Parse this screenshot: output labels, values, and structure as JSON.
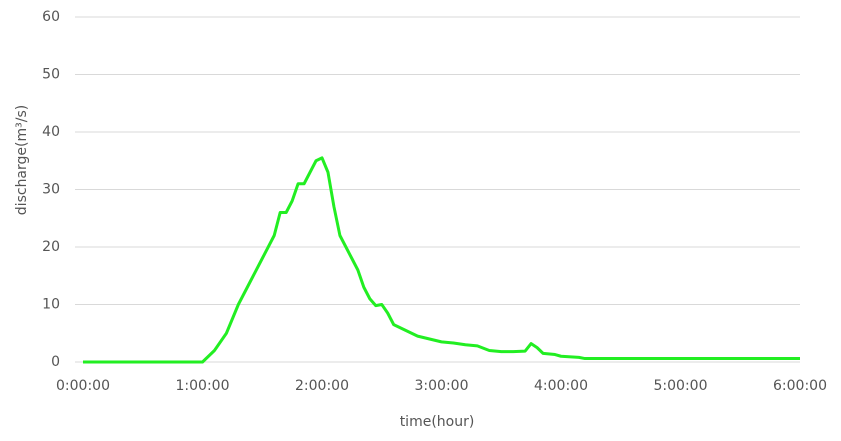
{
  "chart_data": {
    "type": "line",
    "x_label": "time(hour)",
    "y_label": "discharge(m³/s)",
    "xlim": [
      0,
      6
    ],
    "xticks": [
      {
        "value": 0,
        "label": "0:00:00"
      },
      {
        "value": 1,
        "label": "1:00:00"
      },
      {
        "value": 2,
        "label": "2:00:00"
      },
      {
        "value": 3,
        "label": "3:00:00"
      },
      {
        "value": 4,
        "label": "4:00:00"
      },
      {
        "value": 5,
        "label": "5:00:00"
      },
      {
        "value": 6,
        "label": "6:00:00"
      }
    ],
    "ylim": [
      0,
      60
    ],
    "yticks": [
      0,
      10,
      20,
      30,
      40,
      50,
      60
    ],
    "grid": true,
    "color": "#22ee22",
    "x": [
      0,
      1.0,
      1.1,
      1.2,
      1.3,
      1.4,
      1.5,
      1.6,
      1.65,
      1.7,
      1.75,
      1.8,
      1.85,
      1.9,
      1.95,
      2.0,
      2.05,
      2.1,
      2.15,
      2.2,
      2.25,
      2.3,
      2.35,
      2.4,
      2.45,
      2.5,
      2.55,
      2.6,
      2.7,
      2.8,
      2.9,
      3.0,
      3.1,
      3.2,
      3.3,
      3.4,
      3.5,
      3.6,
      3.7,
      3.75,
      3.8,
      3.85,
      3.95,
      4.0,
      4.15,
      4.2,
      5.0,
      6.0
    ],
    "values": [
      0,
      0,
      2,
      5,
      10,
      14,
      18,
      22,
      26,
      26,
      28,
      31,
      31,
      33,
      35,
      35.5,
      33,
      27,
      22,
      20,
      18,
      16,
      13,
      11,
      9.8,
      10,
      8.5,
      6.5,
      5.5,
      4.5,
      4,
      3.5,
      3.3,
      3,
      2.8,
      2,
      1.8,
      1.8,
      1.9,
      3.2,
      2.5,
      1.5,
      1.3,
      1,
      0.8,
      0.6,
      0.6,
      0.6
    ]
  }
}
